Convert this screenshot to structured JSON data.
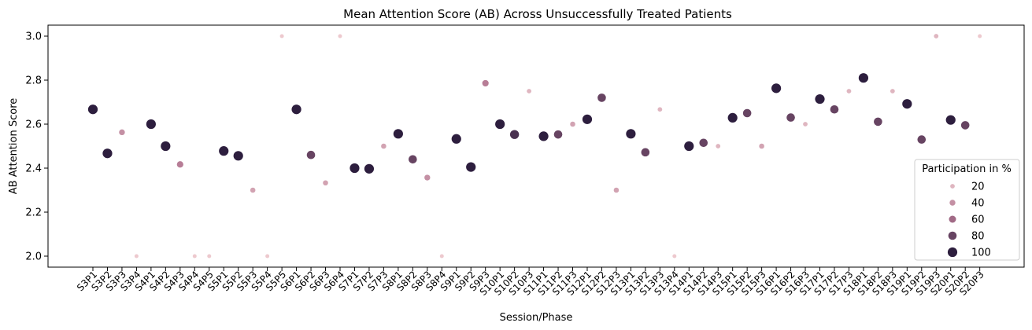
{
  "chart_data": {
    "type": "scatter",
    "title": "Mean Attention Score (AB) Across Unsuccessfully Treated Patients",
    "xlabel": "Session/Phase",
    "ylabel": "AB Attention Score",
    "ylim": [
      1.95,
      3.05
    ],
    "yticks": [
      "2.0",
      "2.2",
      "2.4",
      "2.6",
      "2.8",
      "3.0"
    ],
    "grid": false,
    "legend": {
      "title": "Participation in %",
      "placement": "lower-right",
      "entries": [
        "20",
        "40",
        "60",
        "80",
        "100"
      ]
    },
    "color_scale": {
      "low": "#edc9ce",
      "mid": "#b0738f",
      "high": "#2d1e3e"
    },
    "categories": [
      "S3P1",
      "S3P2",
      "S3P3",
      "S3P4",
      "S4P1",
      "S4P2",
      "S4P3",
      "S4P4",
      "S4P5",
      "S5P1",
      "S5P2",
      "S5P3",
      "S5P4",
      "S5P5",
      "S6P1",
      "S6P2",
      "S6P3",
      "S6P4",
      "S7P1",
      "S7P2",
      "S7P3",
      "S8P1",
      "S8P2",
      "S8P3",
      "S8P4",
      "S9P1",
      "S9P2",
      "S9P3",
      "S10P1",
      "S10P2",
      "S10P3",
      "S11P1",
      "S11P2",
      "S11P3",
      "S12P1",
      "S12P2",
      "S12P3",
      "S13P1",
      "S13P2",
      "S13P3",
      "S13P4",
      "S14P1",
      "S14P2",
      "S14P3",
      "S15P1",
      "S15P2",
      "S15P3",
      "S16P1",
      "S16P2",
      "S16P3",
      "S17P1",
      "S17P2",
      "S17P3",
      "S18P1",
      "S18P2",
      "S18P3",
      "S19P1",
      "S19P2",
      "S19P3",
      "S20P1",
      "S20P2",
      "S20P3"
    ],
    "values": [
      2.667,
      2.467,
      2.563,
      2.0,
      2.6,
      2.5,
      2.417,
      2.0,
      2.0,
      2.478,
      2.456,
      2.3,
      2.0,
      3.0,
      2.667,
      2.46,
      2.333,
      3.0,
      2.4,
      2.397,
      2.5,
      2.556,
      2.44,
      2.357,
      2.0,
      2.533,
      2.405,
      2.786,
      2.6,
      2.553,
      2.75,
      2.545,
      2.553,
      2.6,
      2.622,
      2.72,
      2.3,
      2.556,
      2.472,
      2.667,
      2.0,
      2.5,
      2.515,
      2.5,
      2.629,
      2.65,
      2.5,
      2.763,
      2.63,
      2.6,
      2.714,
      2.667,
      2.75,
      2.81,
      2.611,
      2.75,
      2.692,
      2.53,
      3.0,
      2.619,
      2.595,
      3.0
    ],
    "participation": [
      100,
      100,
      40,
      10,
      100,
      100,
      50,
      10,
      10,
      100,
      100,
      30,
      10,
      10,
      100,
      80,
      30,
      10,
      100,
      100,
      30,
      100,
      80,
      40,
      10,
      100,
      100,
      50,
      100,
      90,
      20,
      100,
      80,
      30,
      100,
      80,
      30,
      100,
      80,
      20,
      10,
      100,
      80,
      20,
      100,
      80,
      30,
      100,
      80,
      20,
      100,
      80,
      20,
      100,
      80,
      20,
      100,
      80,
      20,
      100,
      80,
      10
    ]
  }
}
